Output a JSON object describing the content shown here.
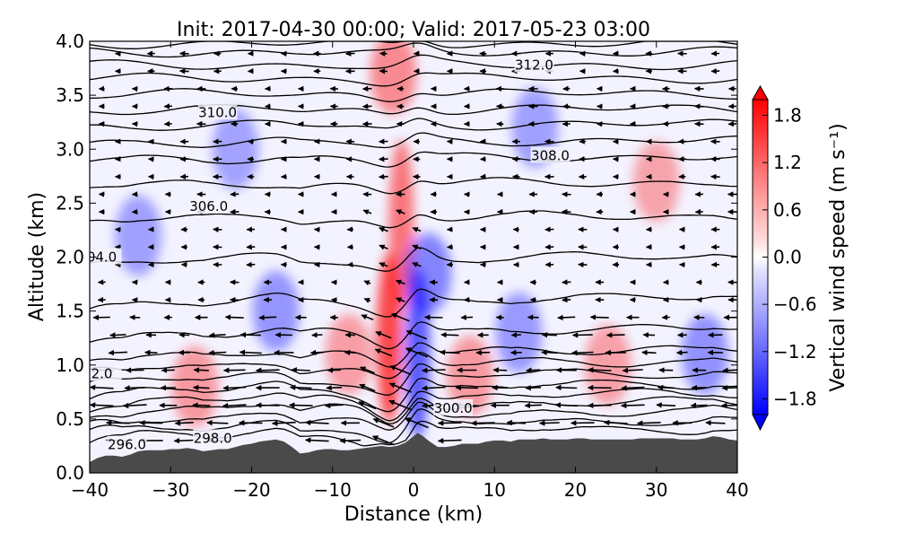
{
  "chart_data": {
    "type": "contour",
    "title": "Init: 2017-04-30 00:00; Valid: 2017-05-23 03:00",
    "xlabel": "Distance (km)",
    "ylabel": "Altitude (km)",
    "xlim": [
      -40,
      40
    ],
    "ylim": [
      0.0,
      4.0
    ],
    "xticks": [
      -40,
      -30,
      -20,
      -10,
      0,
      10,
      20,
      30,
      40
    ],
    "xtick_labels": [
      "−40",
      "−30",
      "−20",
      "−10",
      "0",
      "10",
      "20",
      "30",
      "40"
    ],
    "yticks": [
      0.0,
      0.5,
      1.0,
      1.5,
      2.0,
      2.5,
      3.0,
      3.5,
      4.0
    ],
    "ytick_labels": [
      "0.0",
      "0.5",
      "1.0",
      "1.5",
      "2.0",
      "2.5",
      "3.0",
      "3.5",
      "4.0"
    ],
    "colorbar": {
      "label": "Vertical wind speed (m s⁻¹)",
      "range": [
        -2.0,
        2.0
      ],
      "ticks": [
        1.8,
        1.2,
        0.6,
        0.0,
        -0.6,
        -1.2,
        -1.8
      ],
      "tick_labels": [
        "1.8",
        "1.2",
        "0.6",
        "0.0",
        "−0.6",
        "−1.2",
        "−1.8"
      ],
      "colormap": "bwr",
      "extend": "both"
    },
    "contour_labels": [
      {
        "text": "296.0",
        "x": -35.4,
        "y": 0.26
      },
      {
        "text": "298.0",
        "x": -24.8,
        "y": 0.32
      },
      {
        "text": "2.0",
        "x": -38.5,
        "y": 0.92
      },
      {
        "text": "300.0",
        "x": 4.9,
        "y": 0.6
      },
      {
        "text": "04.0",
        "x": -38.5,
        "y": 2.0
      },
      {
        "text": "306.0",
        "x": -25.3,
        "y": 2.47
      },
      {
        "text": "308.0",
        "x": 16.9,
        "y": 2.94
      },
      {
        "text": "310.0",
        "x": -24.2,
        "y": 3.34
      },
      {
        "text": "312.0",
        "x": 14.9,
        "y": 3.78
      }
    ],
    "theta_levels_y": [
      0.22,
      0.3,
      0.39,
      0.48,
      0.56,
      0.65,
      0.76,
      0.88,
      1.0,
      1.2,
      1.5,
      1.9,
      2.3,
      2.63,
      2.88,
      3.04,
      3.2,
      3.35,
      3.5,
      3.65,
      3.78,
      3.9,
      3.98
    ],
    "w_features": [
      {
        "x": -3.0,
        "y": 1.25,
        "w": 1.5
      },
      {
        "x": 0.5,
        "y": 1.1,
        "w": -1.2
      },
      {
        "x": -1.5,
        "y": 2.3,
        "w": 0.9
      },
      {
        "x": 1.8,
        "y": 1.85,
        "w": -0.7
      },
      {
        "x": -27.0,
        "y": 0.8,
        "w": 0.4
      },
      {
        "x": -17.0,
        "y": 1.5,
        "w": -0.45
      },
      {
        "x": -8.0,
        "y": 1.1,
        "w": 0.35
      },
      {
        "x": 7.0,
        "y": 0.9,
        "w": 0.4
      },
      {
        "x": 13.0,
        "y": 1.3,
        "w": -0.4
      },
      {
        "x": 24.0,
        "y": 1.0,
        "w": 0.3
      },
      {
        "x": 36.0,
        "y": 1.1,
        "w": -0.5
      },
      {
        "x": -22.0,
        "y": 3.0,
        "w": -0.25
      },
      {
        "x": 15.0,
        "y": 3.2,
        "w": -0.3
      },
      {
        "x": 30.0,
        "y": 2.7,
        "w": 0.25
      },
      {
        "x": -2.5,
        "y": 3.7,
        "w": 0.6
      },
      {
        "x": -34.0,
        "y": 2.2,
        "w": -0.3
      }
    ],
    "terrain_profile": [
      [
        -40,
        0.1
      ],
      [
        -39,
        0.14
      ],
      [
        -38,
        0.16
      ],
      [
        -37,
        0.16
      ],
      [
        -36,
        0.15
      ],
      [
        -35,
        0.17
      ],
      [
        -34,
        0.2
      ],
      [
        -33,
        0.21
      ],
      [
        -32,
        0.21
      ],
      [
        -31,
        0.21
      ],
      [
        -30,
        0.22
      ],
      [
        -29,
        0.22
      ],
      [
        -28,
        0.23
      ],
      [
        -27,
        0.22
      ],
      [
        -26,
        0.2
      ],
      [
        -25,
        0.21
      ],
      [
        -24,
        0.22
      ],
      [
        -23,
        0.22
      ],
      [
        -22,
        0.24
      ],
      [
        -21,
        0.26
      ],
      [
        -20,
        0.27
      ],
      [
        -19,
        0.29
      ],
      [
        -18,
        0.3
      ],
      [
        -17,
        0.31
      ],
      [
        -16,
        0.29
      ],
      [
        -15,
        0.24
      ],
      [
        -14,
        0.18
      ],
      [
        -13,
        0.19
      ],
      [
        -12,
        0.21
      ],
      [
        -11,
        0.22
      ],
      [
        -10,
        0.22
      ],
      [
        -9,
        0.21
      ],
      [
        -8,
        0.21
      ],
      [
        -7,
        0.22
      ],
      [
        -6,
        0.23
      ],
      [
        -5,
        0.24
      ],
      [
        -4,
        0.25
      ],
      [
        -3,
        0.24
      ],
      [
        -2,
        0.25
      ],
      [
        -1,
        0.28
      ],
      [
        0,
        0.34
      ],
      [
        0.5,
        0.37
      ],
      [
        1,
        0.35
      ],
      [
        2,
        0.29
      ],
      [
        3,
        0.24
      ],
      [
        4,
        0.24
      ],
      [
        5,
        0.25
      ],
      [
        6,
        0.27
      ],
      [
        7,
        0.27
      ],
      [
        8,
        0.27
      ],
      [
        9,
        0.29
      ],
      [
        10,
        0.3
      ],
      [
        11,
        0.3
      ],
      [
        12,
        0.29
      ],
      [
        13,
        0.31
      ],
      [
        14,
        0.31
      ],
      [
        15,
        0.31
      ],
      [
        16,
        0.32
      ],
      [
        17,
        0.31
      ],
      [
        18,
        0.31
      ],
      [
        19,
        0.31
      ],
      [
        20,
        0.32
      ],
      [
        21,
        0.32
      ],
      [
        22,
        0.31
      ],
      [
        23,
        0.31
      ],
      [
        24,
        0.31
      ],
      [
        25,
        0.31
      ],
      [
        26,
        0.31
      ],
      [
        27,
        0.31
      ],
      [
        28,
        0.32
      ],
      [
        29,
        0.32
      ],
      [
        30,
        0.32
      ],
      [
        31,
        0.32
      ],
      [
        32,
        0.32
      ],
      [
        33,
        0.31
      ],
      [
        34,
        0.31
      ],
      [
        35,
        0.31
      ],
      [
        36,
        0.32
      ],
      [
        37,
        0.34
      ],
      [
        38,
        0.33
      ],
      [
        39,
        0.31
      ],
      [
        40,
        0.3
      ]
    ],
    "colors": {
      "terrain": "#4a4a4a",
      "positive": "#ff0000",
      "negative": "#0000ff",
      "neutral": "#ffffff",
      "contour": "#000000",
      "arrow": "#000000"
    }
  }
}
